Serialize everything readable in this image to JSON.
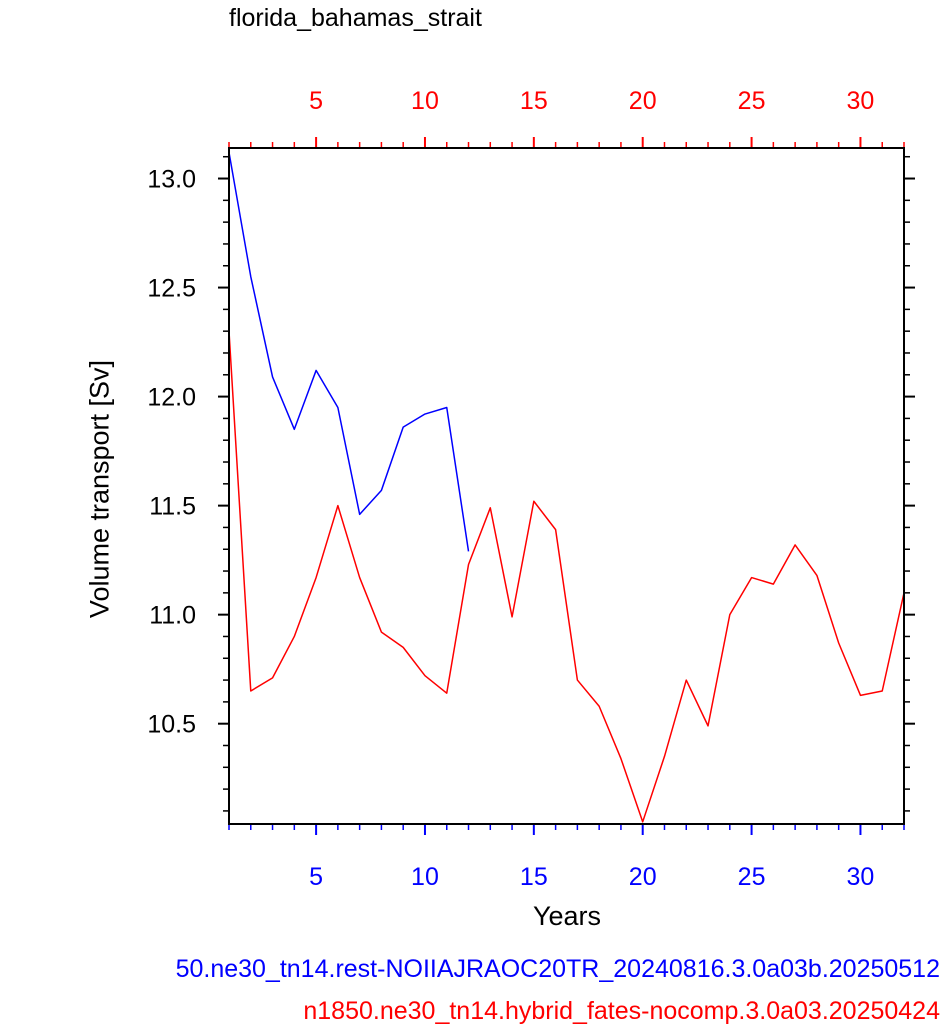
{
  "chart_data": {
    "type": "line",
    "title": "florida_bahamas_strait",
    "xlabel": "Years",
    "ylabel": "Volume transport [Sv]",
    "xlim": [
      1,
      32
    ],
    "ylim": [
      10.04,
      13.14
    ],
    "y_ticks": [
      "10.5",
      "11.0",
      "11.5",
      "12.0",
      "12.5",
      "13.0"
    ],
    "x_ticks_bottom": [
      "5",
      "10",
      "15",
      "20",
      "25",
      "30"
    ],
    "x_ticks_top": [
      "5",
      "10",
      "15",
      "20",
      "25",
      "30"
    ],
    "bottom_axis_color": "#0000ff",
    "top_axis_color": "#ff0000",
    "series": [
      {
        "name": "50.ne30_tn14.rest-NOIIAJRAOC20TR_20240816.3.0a03b.20250512",
        "color": "#0000ff",
        "x": [
          1,
          2,
          3,
          4,
          5,
          6,
          7,
          8,
          9,
          10,
          11,
          12
        ],
        "values": [
          13.12,
          12.55,
          12.09,
          11.85,
          12.12,
          11.95,
          11.46,
          11.57,
          11.86,
          11.92,
          11.95,
          11.29
        ]
      },
      {
        "name": "n1850.ne30_tn14.hybrid_fates-nocomp.3.0a03.20250424",
        "color": "#ff0000",
        "x": [
          1,
          2,
          3,
          4,
          5,
          6,
          7,
          8,
          9,
          10,
          11,
          12,
          13,
          14,
          15,
          16,
          17,
          18,
          19,
          20,
          21,
          22,
          23,
          24,
          25,
          26,
          27,
          28,
          29,
          30,
          31,
          32
        ],
        "values": [
          12.3,
          10.65,
          10.71,
          10.9,
          11.17,
          11.5,
          11.17,
          10.92,
          10.85,
          10.72,
          10.64,
          11.23,
          11.49,
          10.99,
          11.52,
          11.39,
          10.7,
          10.58,
          10.34,
          10.05,
          10.35,
          10.7,
          10.49,
          11.0,
          11.17,
          11.14,
          11.32,
          11.18,
          10.87,
          10.63,
          10.65,
          11.1
        ]
      }
    ]
  }
}
